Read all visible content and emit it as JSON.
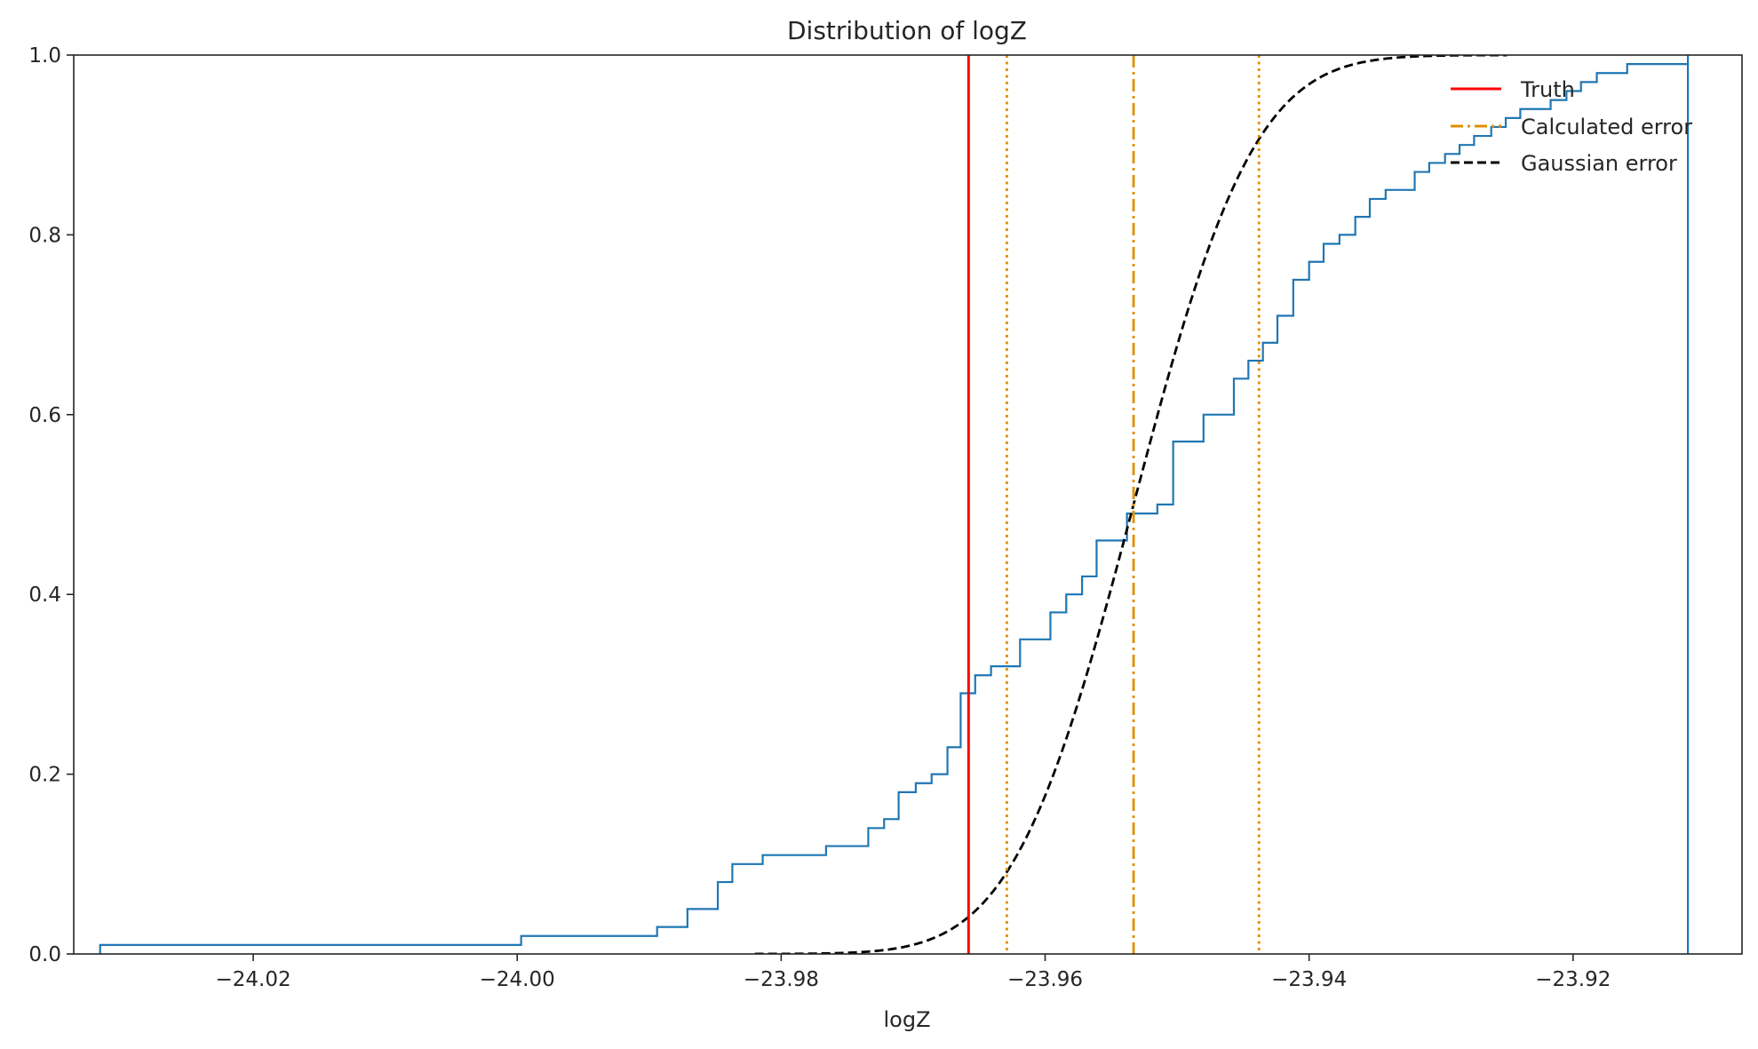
{
  "chart_data": {
    "type": "line",
    "title": "Distribution of logZ",
    "xlabel": "logZ",
    "ylabel": "",
    "xlim": [
      -24.0336,
      -23.9072
    ],
    "ylim": [
      0.0,
      1.0
    ],
    "xticks": [
      -24.02,
      -24.0,
      -23.98,
      -23.96,
      -23.94,
      -23.92
    ],
    "xtick_labels": [
      "−24.02",
      "−24.00",
      "−23.98",
      "−23.96",
      "−23.94",
      "−23.92"
    ],
    "yticks": [
      0.0,
      0.2,
      0.4,
      0.6,
      0.8,
      1.0
    ],
    "ytick_labels": [
      "0.0",
      "0.2",
      "0.4",
      "0.6",
      "0.8",
      "1.0"
    ],
    "grid": false,
    "legend_position": "top-right",
    "legend": [
      {
        "label": "Truth",
        "color": "#ff0000",
        "style": "solid"
      },
      {
        "label": "Calculated error",
        "color": "#e08f00",
        "style": "dashdot"
      },
      {
        "label": "Gaussian error",
        "color": "#000000",
        "style": "dashed"
      }
    ],
    "empirical_cdf": {
      "color": "#1f77b4",
      "x": [
        -24.0316,
        -23.9997,
        -23.9894,
        -23.9871,
        -23.9848,
        -23.9837,
        -23.9814,
        -23.9766,
        -23.9734,
        -23.9722,
        -23.9711,
        -23.9698,
        -23.9686,
        -23.9674,
        -23.9664,
        -23.9653,
        -23.9641,
        -23.9619,
        -23.9596,
        -23.9584,
        -23.9572,
        -23.9561,
        -23.9538,
        -23.9515,
        -23.9503,
        -23.948,
        -23.9457,
        -23.9446,
        -23.9435,
        -23.9424,
        -23.9412,
        -23.94,
        -23.9389,
        -23.9377,
        -23.9365,
        -23.9354,
        -23.9342,
        -23.932,
        -23.9309,
        -23.9297,
        -23.9286,
        -23.9275,
        -23.9262,
        -23.9251,
        -23.924,
        -23.9217,
        -23.9205,
        -23.9194,
        -23.9182,
        -23.9159,
        -23.9113
      ],
      "y": [
        0.01,
        0.02,
        0.03,
        0.05,
        0.08,
        0.1,
        0.11,
        0.12,
        0.14,
        0.15,
        0.18,
        0.19,
        0.2,
        0.23,
        0.29,
        0.31,
        0.32,
        0.35,
        0.38,
        0.4,
        0.42,
        0.46,
        0.49,
        0.5,
        0.57,
        0.6,
        0.64,
        0.66,
        0.68,
        0.71,
        0.75,
        0.77,
        0.79,
        0.8,
        0.82,
        0.84,
        0.85,
        0.87,
        0.88,
        0.89,
        0.9,
        0.91,
        0.92,
        0.93,
        0.94,
        0.95,
        0.96,
        0.97,
        0.98,
        0.99,
        1.0
      ]
    },
    "truth_x": -23.9658,
    "calculated_mean_x": -23.9533,
    "calculated_error_x": [
      -23.9629,
      -23.9438
    ],
    "gaussian": {
      "mean": -23.9533,
      "sigma": 0.0072,
      "x_start": -23.982,
      "x_end": -23.925,
      "color": "#000000"
    }
  }
}
